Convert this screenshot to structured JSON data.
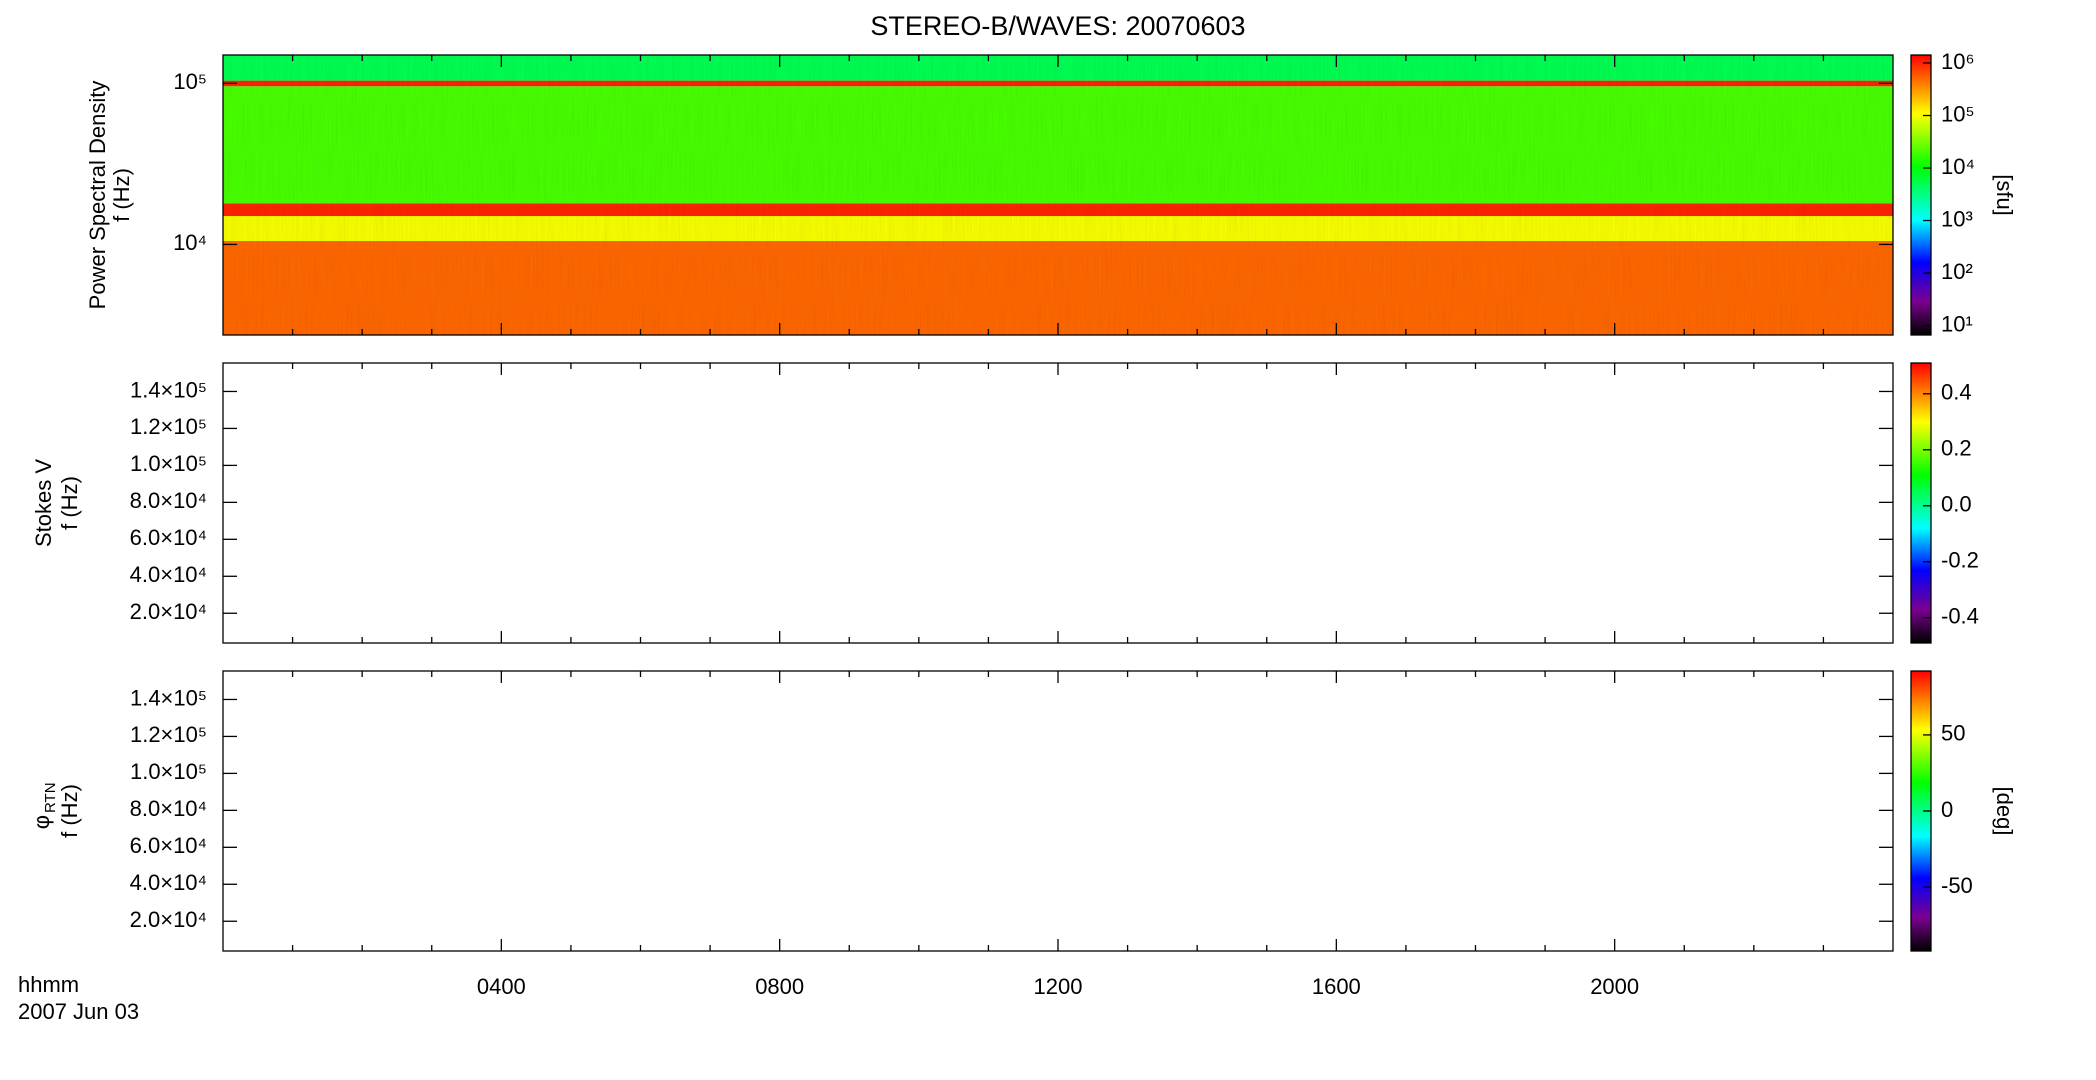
{
  "title": "STEREO-B/WAVES: 20070603",
  "time_axis": {
    "xlim": [
      0,
      24
    ],
    "xticks": [
      {
        "value": 4,
        "label": "0400"
      },
      {
        "value": 8,
        "label": "0800"
      },
      {
        "value": 12,
        "label": "1200"
      },
      {
        "value": 16,
        "label": "1600"
      },
      {
        "value": 20,
        "label": "2000"
      }
    ],
    "xminorticks": [
      1,
      2,
      3,
      5,
      6,
      7,
      9,
      10,
      11,
      13,
      14,
      15,
      17,
      18,
      19,
      21,
      22,
      23
    ],
    "xlabel": "hhmm",
    "date": "2007 Jun 03"
  },
  "colormap": [
    {
      "at": 0,
      "color": "#000000"
    },
    {
      "at": 0.12,
      "color": "#7a0090"
    },
    {
      "at": 0.26,
      "color": "#0000ff"
    },
    {
      "at": 0.41,
      "color": "#00ffff"
    },
    {
      "at": 0.6,
      "color": "#00ff00"
    },
    {
      "at": 0.79,
      "color": "#ffff00"
    },
    {
      "at": 1,
      "color": "#ff0000"
    }
  ],
  "chart_data": [
    {
      "type": "spectrogram",
      "ylabel": "Power Spectral Density",
      "ylabel2": "f (Hz)",
      "ylog": true,
      "ylim": [
        2740,
        150000
      ],
      "yticks": [
        {
          "value": 10000,
          "label": "10⁴"
        },
        {
          "value": 100000,
          "label": "10⁵"
        }
      ],
      "colorbar": {
        "label": "[sfu]",
        "log": true,
        "lim": [
          6.6,
          1420000
        ],
        "ticks": [
          {
            "value": 10,
            "label": "10¹"
          },
          {
            "value": 100,
            "label": "10²"
          },
          {
            "value": 1000,
            "label": "10³"
          },
          {
            "value": 10000,
            "label": "10⁴"
          },
          {
            "value": 100000,
            "label": "10⁵"
          },
          {
            "value": 1000000,
            "label": "10⁶"
          }
        ]
      },
      "bands": [
        {
          "flim": [
            2740,
            10500
          ],
          "value": 500000
        },
        {
          "flim": [
            10500,
            15000
          ],
          "value": 100000
        },
        {
          "flim": [
            15000,
            18000
          ],
          "value": 1000000
        },
        {
          "flim": [
            18000,
            96000
          ],
          "value": 20000
        },
        {
          "flim": [
            96000,
            104000
          ],
          "value": 1000000
        },
        {
          "flim": [
            104000,
            150000
          ],
          "value": 5000
        }
      ]
    },
    {
      "type": "spectrogram",
      "ylabel": "Stokes V",
      "ylabel2": "f (Hz)",
      "ylog": false,
      "ylim": [
        3900,
        155400
      ],
      "yticks": [
        {
          "value": 20000,
          "label": "2.0×10⁴"
        },
        {
          "value": 40000,
          "label": "4.0×10⁴"
        },
        {
          "value": 60000,
          "label": "6.0×10⁴"
        },
        {
          "value": 80000,
          "label": "8.0×10⁴"
        },
        {
          "value": 100000,
          "label": "1.0×10⁵"
        },
        {
          "value": 120000,
          "label": "1.2×10⁵"
        },
        {
          "value": 140000,
          "label": "1.4×10⁵"
        }
      ],
      "colorbar": {
        "log": false,
        "lim": [
          -0.49,
          0.51
        ],
        "ticks": [
          -0.4,
          -0.2,
          {
            "value": 0,
            "label": "0.0"
          },
          0.2,
          0.4
        ]
      },
      "bands": []
    },
    {
      "type": "spectrogram",
      "ylabel_symbol": "φ",
      "ylabel_subscript": "RTN",
      "ylabel2": "f (Hz)",
      "ylog": false,
      "ylim": [
        3900,
        155400
      ],
      "yticks": [
        {
          "value": 20000,
          "label": "2.0×10⁴"
        },
        {
          "value": 40000,
          "label": "4.0×10⁴"
        },
        {
          "value": 60000,
          "label": "6.0×10⁴"
        },
        {
          "value": 80000,
          "label": "8.0×10⁴"
        },
        {
          "value": 100000,
          "label": "1.0×10⁵"
        },
        {
          "value": 120000,
          "label": "1.2×10⁵"
        },
        {
          "value": 140000,
          "label": "1.4×10⁵"
        }
      ],
      "colorbar": {
        "label": "[deg]",
        "log": false,
        "lim": [
          -92,
          92
        ],
        "ticks": [
          -50,
          0,
          50
        ]
      },
      "bands": []
    }
  ]
}
